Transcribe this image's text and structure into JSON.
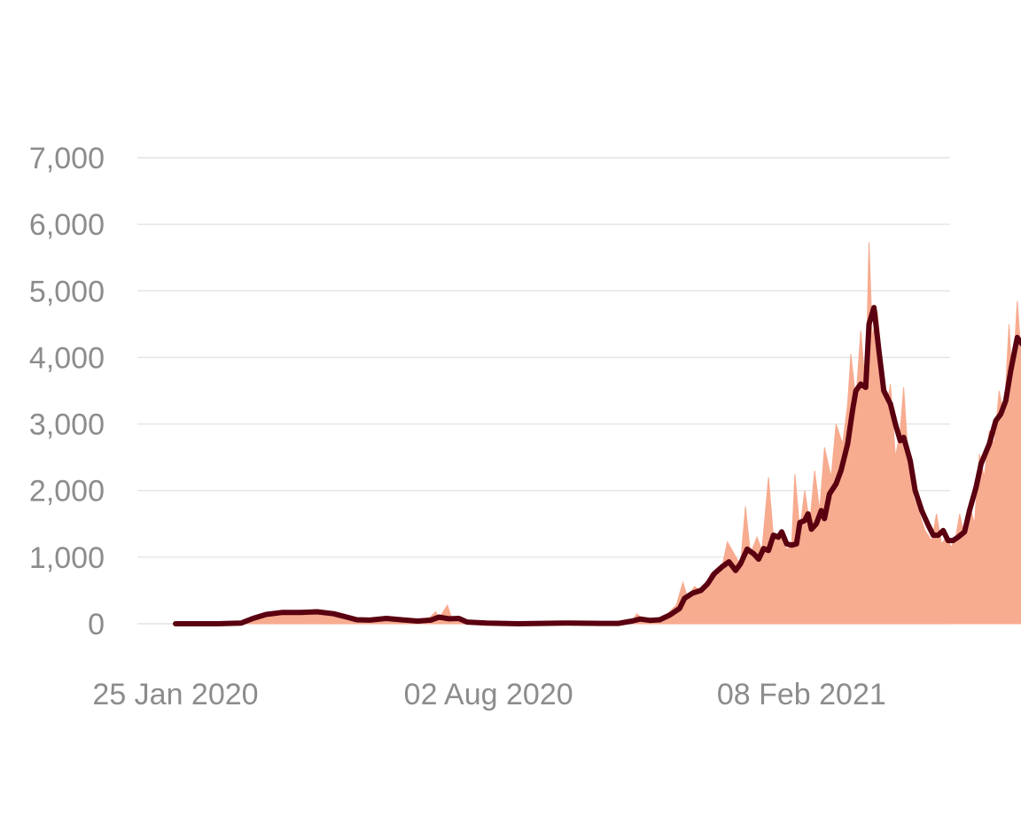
{
  "chart_data": {
    "type": "area",
    "title": "",
    "xlabel": "",
    "ylabel": "",
    "x_start": "2020-01-25",
    "x_end": "2021-04-22",
    "x_ticks": [
      {
        "date": "2020-01-25",
        "label": "25 Jan 2020"
      },
      {
        "date": "2020-08-02",
        "label": "02 Aug 2020"
      },
      {
        "date": "2021-02-08",
        "label": "08 Feb 2021"
      }
    ],
    "ylim": [
      0,
      7000
    ],
    "y_ticks": [
      {
        "value": 0,
        "label": "0"
      },
      {
        "value": 1000,
        "label": "1,000"
      },
      {
        "value": 2000,
        "label": "2,000"
      },
      {
        "value": 3000,
        "label": "3,000"
      },
      {
        "value": 4000,
        "label": "4,000"
      },
      {
        "value": 5000,
        "label": "5,000"
      },
      {
        "value": 6000,
        "label": "6,000"
      },
      {
        "value": 7000,
        "label": "7,000"
      }
    ],
    "grid": true,
    "legend": "none",
    "series": [
      {
        "kind": "area",
        "color": "#f7ab8f",
        "points": [
          [
            "2020-01-25",
            0
          ],
          [
            "2020-02-20",
            0
          ],
          [
            "2020-03-05",
            20
          ],
          [
            "2020-03-18",
            110
          ],
          [
            "2020-03-28",
            170
          ],
          [
            "2020-04-10",
            180
          ],
          [
            "2020-04-20",
            210
          ],
          [
            "2020-05-01",
            150
          ],
          [
            "2020-05-12",
            60
          ],
          [
            "2020-05-25",
            50
          ],
          [
            "2020-06-05",
            80
          ],
          [
            "2020-06-15",
            30
          ],
          [
            "2020-06-25",
            40
          ],
          [
            "2020-07-01",
            180
          ],
          [
            "2020-07-03",
            80
          ],
          [
            "2020-07-08",
            280
          ],
          [
            "2020-07-11",
            60
          ],
          [
            "2020-07-20",
            10
          ],
          [
            "2020-08-10",
            0
          ],
          [
            "2020-09-20",
            5
          ],
          [
            "2020-10-10",
            0
          ],
          [
            "2020-10-28",
            20
          ],
          [
            "2020-10-31",
            150
          ],
          [
            "2020-11-05",
            50
          ],
          [
            "2020-11-13",
            70
          ],
          [
            "2020-11-18",
            130
          ],
          [
            "2020-11-24",
            280
          ],
          [
            "2020-11-28",
            620
          ],
          [
            "2020-12-01",
            380
          ],
          [
            "2020-12-05",
            560
          ],
          [
            "2020-12-10",
            470
          ],
          [
            "2020-12-15",
            760
          ],
          [
            "2020-12-19",
            720
          ],
          [
            "2020-12-22",
            880
          ],
          [
            "2020-12-25",
            1230
          ],
          [
            "2020-12-28",
            1100
          ],
          [
            "2021-01-02",
            880
          ],
          [
            "2021-01-05",
            1760
          ],
          [
            "2021-01-08",
            1050
          ],
          [
            "2021-01-12",
            1300
          ],
          [
            "2021-01-15",
            1100
          ],
          [
            "2021-01-19",
            2200
          ],
          [
            "2021-01-22",
            1300
          ],
          [
            "2021-01-26",
            1350
          ],
          [
            "2021-01-30",
            1120
          ],
          [
            "2021-02-02",
            1180
          ],
          [
            "2021-02-04",
            2250
          ],
          [
            "2021-02-07",
            1400
          ],
          [
            "2021-02-10",
            2000
          ],
          [
            "2021-02-13",
            1500
          ],
          [
            "2021-02-16",
            2300
          ],
          [
            "2021-02-19",
            1700
          ],
          [
            "2021-02-22",
            2650
          ],
          [
            "2021-02-26",
            2200
          ],
          [
            "2021-03-01",
            3000
          ],
          [
            "2021-03-05",
            2700
          ],
          [
            "2021-03-08",
            3300
          ],
          [
            "2021-03-10",
            4050
          ],
          [
            "2021-03-13",
            3350
          ],
          [
            "2021-03-16",
            4400
          ],
          [
            "2021-03-19",
            3500
          ],
          [
            "2021-03-21",
            5730
          ],
          [
            "2021-03-23",
            4300
          ],
          [
            "2021-03-26",
            4700
          ],
          [
            "2021-03-29",
            3900
          ],
          [
            "2021-04-01",
            3300
          ],
          [
            "2021-04-03",
            3600
          ],
          [
            "2021-04-06",
            2500
          ],
          [
            "2021-04-09",
            2900
          ],
          [
            "2021-04-11",
            3550
          ],
          [
            "2021-04-14",
            2400
          ],
          [
            "2021-04-17",
            1900
          ],
          [
            "2021-04-20",
            1700
          ],
          [
            "2021-04-24",
            1400
          ],
          [
            "2021-04-28",
            1250
          ],
          [
            "2021-05-01",
            1650
          ],
          [
            "2021-05-04",
            1200
          ],
          [
            "2021-05-07",
            1300
          ],
          [
            "2021-05-10",
            1150
          ],
          [
            "2021-05-13",
            1350
          ],
          [
            "2021-05-15",
            1650
          ],
          [
            "2021-05-18",
            1300
          ],
          [
            "2021-05-21",
            1800
          ],
          [
            "2021-05-24",
            1500
          ],
          [
            "2021-05-27",
            2550
          ],
          [
            "2021-05-30",
            2200
          ],
          [
            "2021-06-02",
            2900
          ],
          [
            "2021-06-05",
            2700
          ],
          [
            "2021-06-08",
            3500
          ],
          [
            "2021-06-11",
            3100
          ],
          [
            "2021-06-14",
            4500
          ],
          [
            "2021-06-16",
            3600
          ],
          [
            "2021-06-19",
            4850
          ],
          [
            "2021-06-22",
            3800
          ],
          [
            "2021-06-24",
            4100
          ],
          [
            "2021-06-25",
            0
          ]
        ]
      },
      {
        "kind": "line",
        "color": "#5a0010",
        "points": [
          [
            "2020-01-25",
            0
          ],
          [
            "2020-02-20",
            0
          ],
          [
            "2020-03-05",
            10
          ],
          [
            "2020-03-12",
            80
          ],
          [
            "2020-03-20",
            140
          ],
          [
            "2020-03-30",
            170
          ],
          [
            "2020-04-10",
            170
          ],
          [
            "2020-04-20",
            180
          ],
          [
            "2020-04-30",
            150
          ],
          [
            "2020-05-08",
            100
          ],
          [
            "2020-05-14",
            60
          ],
          [
            "2020-05-22",
            55
          ],
          [
            "2020-06-01",
            80
          ],
          [
            "2020-06-10",
            60
          ],
          [
            "2020-06-20",
            40
          ],
          [
            "2020-06-28",
            55
          ],
          [
            "2020-07-03",
            100
          ],
          [
            "2020-07-09",
            75
          ],
          [
            "2020-07-15",
            80
          ],
          [
            "2020-07-20",
            25
          ],
          [
            "2020-08-01",
            10
          ],
          [
            "2020-08-20",
            0
          ],
          [
            "2020-09-20",
            10
          ],
          [
            "2020-10-10",
            5
          ],
          [
            "2020-10-20",
            5
          ],
          [
            "2020-10-28",
            40
          ],
          [
            "2020-11-02",
            70
          ],
          [
            "2020-11-08",
            50
          ],
          [
            "2020-11-14",
            60
          ],
          [
            "2020-11-20",
            130
          ],
          [
            "2020-11-26",
            230
          ],
          [
            "2020-11-29",
            380
          ],
          [
            "2020-12-04",
            460
          ],
          [
            "2020-12-09",
            500
          ],
          [
            "2020-12-13",
            600
          ],
          [
            "2020-12-17",
            750
          ],
          [
            "2020-12-22",
            860
          ],
          [
            "2020-12-26",
            930
          ],
          [
            "2020-12-30",
            800
          ],
          [
            "2021-01-02",
            900
          ],
          [
            "2021-01-06",
            1120
          ],
          [
            "2021-01-10",
            1050
          ],
          [
            "2021-01-13",
            970
          ],
          [
            "2021-01-16",
            1130
          ],
          [
            "2021-01-19",
            1100
          ],
          [
            "2021-01-22",
            1330
          ],
          [
            "2021-01-25",
            1300
          ],
          [
            "2021-01-27",
            1380
          ],
          [
            "2021-01-30",
            1200
          ],
          [
            "2021-02-02",
            1180
          ],
          [
            "2021-02-05",
            1200
          ],
          [
            "2021-02-07",
            1520
          ],
          [
            "2021-02-10",
            1550
          ],
          [
            "2021-02-12",
            1650
          ],
          [
            "2021-02-14",
            1420
          ],
          [
            "2021-02-17",
            1500
          ],
          [
            "2021-02-20",
            1700
          ],
          [
            "2021-02-22",
            1580
          ],
          [
            "2021-02-25",
            1950
          ],
          [
            "2021-03-01",
            2100
          ],
          [
            "2021-03-04",
            2300
          ],
          [
            "2021-03-08",
            2700
          ],
          [
            "2021-03-11",
            3200
          ],
          [
            "2021-03-13",
            3500
          ],
          [
            "2021-03-16",
            3600
          ],
          [
            "2021-03-19",
            3550
          ],
          [
            "2021-03-21",
            4500
          ],
          [
            "2021-03-24",
            4750
          ],
          [
            "2021-03-27",
            4100
          ],
          [
            "2021-03-30",
            3500
          ],
          [
            "2021-04-03",
            3300
          ],
          [
            "2021-04-06",
            3000
          ],
          [
            "2021-04-09",
            2750
          ],
          [
            "2021-04-11",
            2800
          ],
          [
            "2021-04-15",
            2450
          ],
          [
            "2021-04-18",
            2000
          ],
          [
            "2021-04-22",
            1700
          ],
          [
            "2021-04-26",
            1480
          ],
          [
            "2021-04-29",
            1330
          ],
          [
            "2021-05-02",
            1330
          ],
          [
            "2021-05-05",
            1400
          ],
          [
            "2021-05-08",
            1250
          ],
          [
            "2021-05-11",
            1250
          ],
          [
            "2021-05-14",
            1300
          ],
          [
            "2021-05-18",
            1380
          ],
          [
            "2021-05-21",
            1700
          ],
          [
            "2021-05-25",
            2050
          ],
          [
            "2021-05-28",
            2400
          ],
          [
            "2021-06-02",
            2700
          ],
          [
            "2021-06-06",
            3050
          ],
          [
            "2021-06-09",
            3150
          ],
          [
            "2021-06-12",
            3350
          ],
          [
            "2021-06-15",
            3800
          ],
          [
            "2021-06-19",
            4300
          ],
          [
            "2021-06-22",
            4200
          ]
        ]
      }
    ]
  }
}
